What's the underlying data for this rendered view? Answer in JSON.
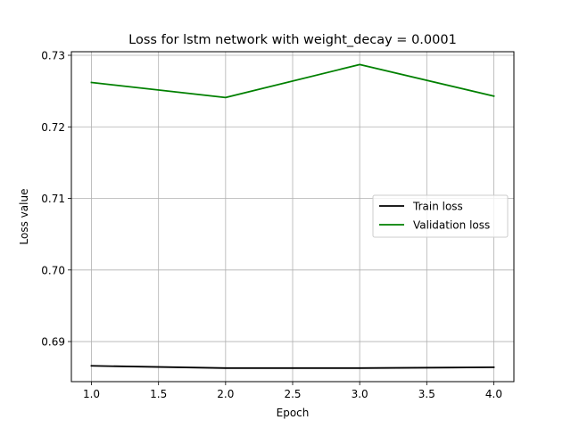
{
  "chart_data": {
    "type": "line",
    "title": "Loss for lstm network with weight_decay = 0.0001",
    "xlabel": "Epoch",
    "ylabel": "Loss value",
    "xlim": [
      0.85,
      4.15
    ],
    "ylim": [
      0.6844,
      0.7305
    ],
    "xticks": [
      1.0,
      1.5,
      2.0,
      2.5,
      3.0,
      3.5,
      4.0
    ],
    "xtick_labels": [
      "1.0",
      "1.5",
      "2.0",
      "2.5",
      "3.0",
      "3.5",
      "4.0"
    ],
    "yticks": [
      0.69,
      0.7,
      0.71,
      0.72,
      0.73
    ],
    "ytick_labels": [
      "0.69",
      "0.70",
      "0.71",
      "0.72",
      "0.73"
    ],
    "grid": true,
    "legend_position": "center-right",
    "x": [
      1,
      2,
      3,
      4
    ],
    "series": [
      {
        "name": "Train loss",
        "color": "#000000",
        "values": [
          0.6866,
          0.6863,
          0.6863,
          0.6864
        ]
      },
      {
        "name": "Validation loss",
        "color": "#008000",
        "values": [
          0.7262,
          0.7241,
          0.7287,
          0.7243
        ]
      }
    ]
  }
}
